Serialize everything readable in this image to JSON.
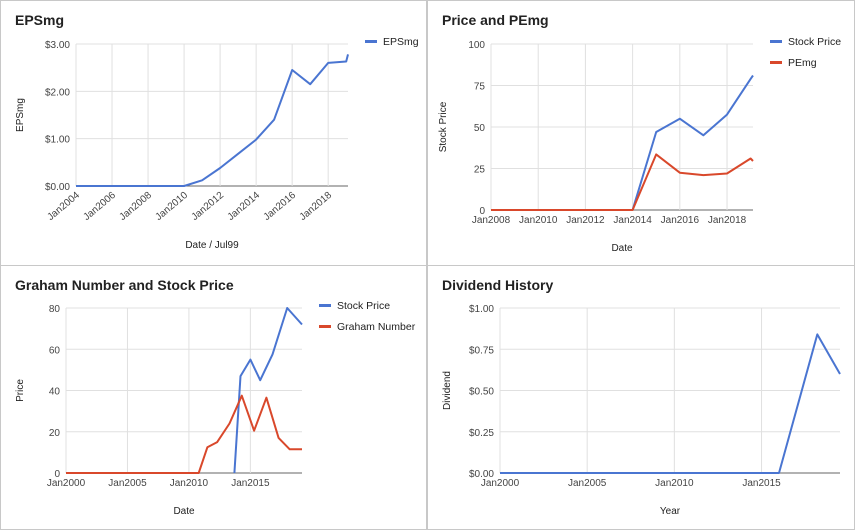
{
  "chart_data": [
    {
      "type": "line",
      "title": "EPSmg",
      "xlabel": "Date / Jul99",
      "ylabel": "EPSmg",
      "x_domain": [
        2004,
        2019.1
      ],
      "ylim": [
        0,
        3
      ],
      "x_ticks": [
        "Jan2004",
        "Jan2006",
        "Jan2008",
        "Jan2010",
        "Jan2012",
        "Jan2014",
        "Jan2016",
        "Jan2018"
      ],
      "y_ticks": [
        "$0.00",
        "$1.00",
        "$2.00",
        "$3.00"
      ],
      "rotate_x_ticks": true,
      "series": [
        {
          "name": "EPSmg",
          "color": "#4a75d1",
          "x": [
            2004,
            2010,
            2011,
            2012,
            2013,
            2014,
            2015,
            2016,
            2017,
            2018,
            2019,
            2019.1
          ],
          "y": [
            0,
            0,
            0.12,
            0.38,
            0.68,
            0.98,
            1.4,
            2.45,
            2.15,
            2.6,
            2.63,
            2.78
          ]
        }
      ],
      "legend": "right"
    },
    {
      "type": "line",
      "title": "Price and PEmg",
      "xlabel": "Date",
      "ylabel": "Stock Price",
      "x_domain": [
        2008,
        2019.1
      ],
      "ylim": [
        0,
        100
      ],
      "x_ticks": [
        "Jan2008",
        "Jan2010",
        "Jan2012",
        "Jan2014",
        "Jan2016",
        "Jan2018"
      ],
      "y_ticks": [
        "0",
        "25",
        "50",
        "75",
        "100"
      ],
      "rotate_x_ticks": false,
      "series": [
        {
          "name": "Stock Price",
          "color": "#4a75d1",
          "x": [
            2008,
            2014,
            2015,
            2016,
            2017,
            2018,
            2019,
            2019.1
          ],
          "y": [
            0,
            0,
            47,
            55,
            45,
            57.5,
            79,
            81
          ]
        },
        {
          "name": "PEmg",
          "color": "#d9482b",
          "x": [
            2008,
            2014,
            2015,
            2016,
            2017,
            2018,
            2019,
            2019.1
          ],
          "y": [
            0,
            0,
            33.5,
            22.5,
            21,
            22,
            31,
            29.5
          ]
        }
      ],
      "legend": "right"
    },
    {
      "type": "line",
      "title": "Graham Number and Stock Price",
      "xlabel": "Date",
      "ylabel": "Price",
      "x_domain": [
        2000,
        2019.2
      ],
      "ylim": [
        0,
        80
      ],
      "x_ticks": [
        "Jan2000",
        "Jan2005",
        "Jan2010",
        "Jan2015"
      ],
      "y_ticks": [
        "0",
        "20",
        "40",
        "60",
        "80"
      ],
      "rotate_x_ticks": false,
      "series": [
        {
          "name": "Stock Price",
          "color": "#4a75d1",
          "x": [
            2013.7,
            2014.2,
            2015.0,
            2015.8,
            2016.8,
            2018.0,
            2019.2
          ],
          "y": [
            0,
            47,
            55,
            45,
            57.5,
            80,
            72
          ]
        },
        {
          "name": "Graham Number",
          "color": "#d9482b",
          "x": [
            2000,
            2010.8,
            2011.5,
            2012.3,
            2013.3,
            2014.3,
            2015.3,
            2016.3,
            2017.3,
            2018.2,
            2019.2
          ],
          "y": [
            0,
            0,
            12.5,
            15,
            24,
            37.5,
            20.5,
            36.5,
            17,
            11.5,
            11.5
          ]
        }
      ],
      "legend": "right"
    },
    {
      "type": "line",
      "title": "Dividend History",
      "xlabel": "Year",
      "ylabel": "Dividend",
      "x_domain": [
        2000,
        2019.5
      ],
      "ylim": [
        0,
        1
      ],
      "x_ticks": [
        "Jan2000",
        "Jan2005",
        "Jan2010",
        "Jan2015"
      ],
      "y_ticks": [
        "$0.00",
        "$0.25",
        "$0.50",
        "$0.75",
        "$1.00"
      ],
      "rotate_x_ticks": false,
      "series": [
        {
          "name": "",
          "color": "#4a75d1",
          "x": [
            2000,
            2016,
            2018.2,
            2019.5
          ],
          "y": [
            0,
            0,
            0.84,
            0.6
          ]
        }
      ],
      "legend": "none"
    }
  ]
}
